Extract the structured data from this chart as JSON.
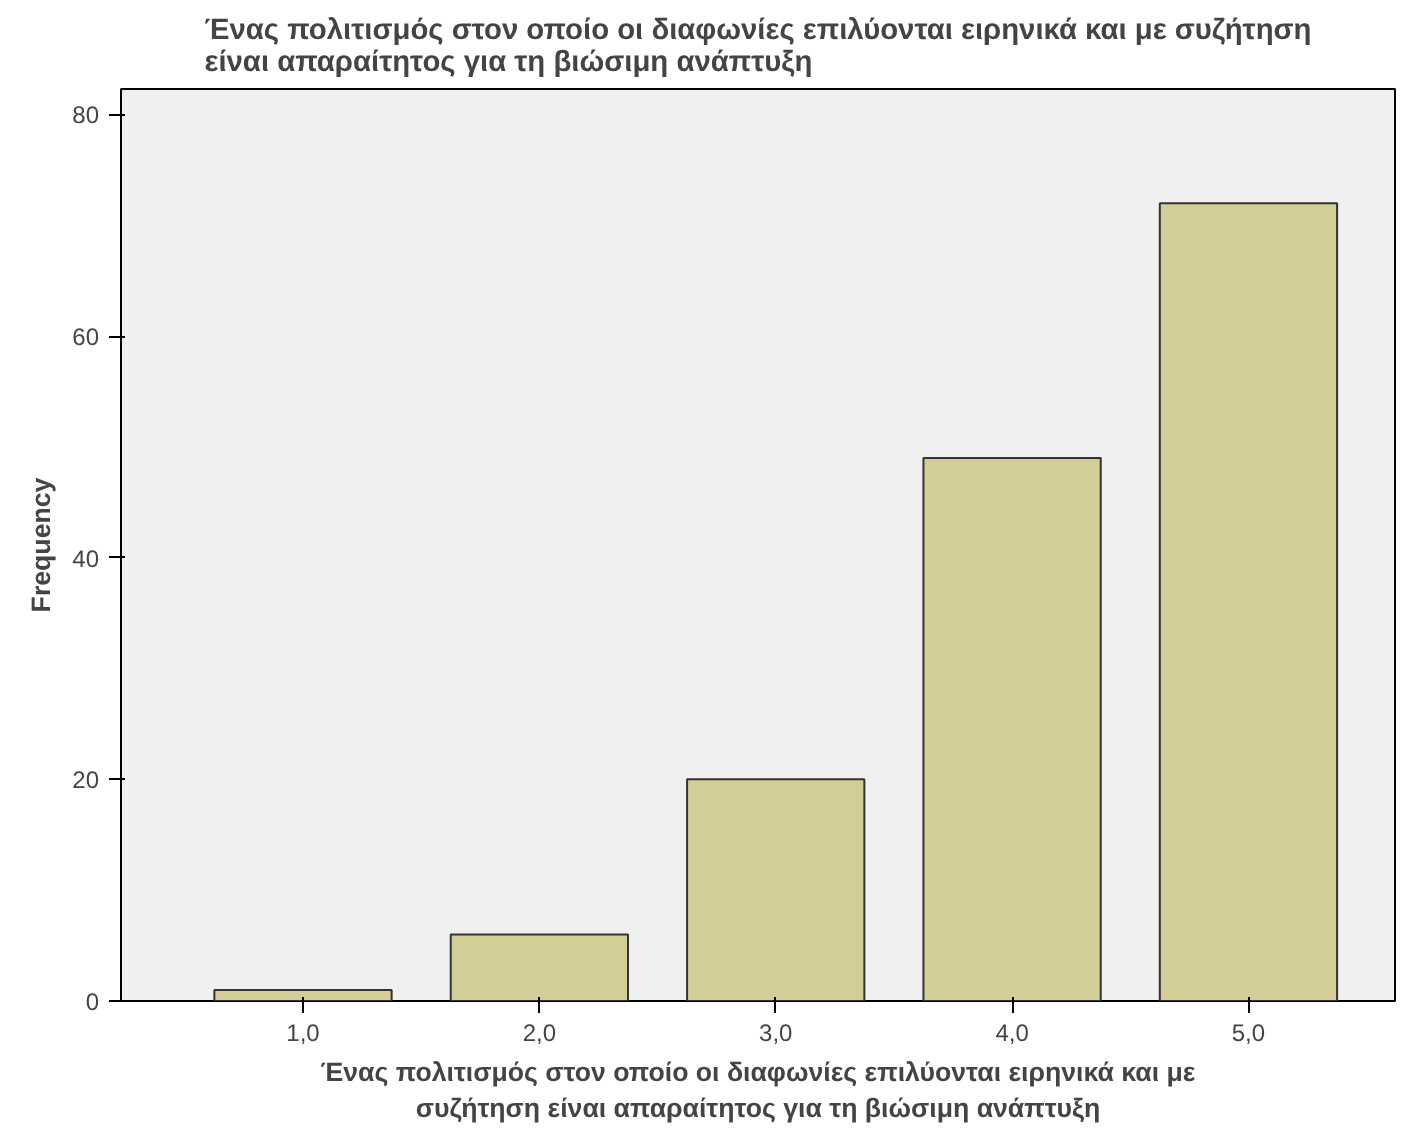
{
  "chart_data": {
    "type": "bar",
    "title": "Ένας πολιτισμός στον οποίο οι διαφωνίες επιλύονται ειρηνικά και με συζήτηση\nείναι απαραίτητος για τη βιώσιμη ανάπτυξη",
    "xlabel": "Ένας πολιτισμός στον οποίο οι διαφωνίες επιλύονται ειρηνικά και με\nσυζήτηση είναι απαραίτητος για τη βιώσιμη ανάπτυξη",
    "ylabel": "Frequency",
    "categories": [
      "1,0",
      "2,0",
      "3,0",
      "4,0",
      "5,0"
    ],
    "values": [
      1,
      6,
      20,
      49,
      72
    ],
    "color": "#d3ce97",
    "ylim": [
      0,
      82.3
    ],
    "yticks": [
      0,
      20,
      40,
      60,
      80
    ],
    "grid": false
  }
}
